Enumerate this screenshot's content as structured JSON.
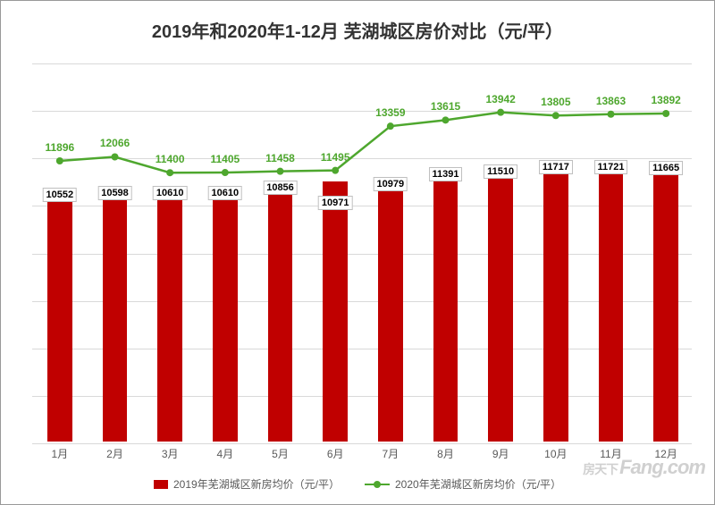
{
  "chart": {
    "type": "bar+line",
    "title": "2019年和2020年1-12月 芜湖城区房价对比（元/平）",
    "title_fontsize": 20,
    "title_color": "#333333",
    "background_color": "#ffffff",
    "border_color": "#999999",
    "grid_color": "#d9d9d9",
    "categories": [
      "1月",
      "2月",
      "3月",
      "4月",
      "5月",
      "6月",
      "7月",
      "8月",
      "9月",
      "10月",
      "11月",
      "12月"
    ],
    "x_tick_fontsize": 12,
    "x_tick_color": "#595959",
    "ylim": [
      0,
      16000
    ],
    "ytick_step": 2000,
    "show_y_axis_labels": false,
    "bar_series": {
      "name": "2019年芜湖城区新房均价（元/平）",
      "color": "#c00000",
      "values": [
        10552,
        10598,
        10610,
        10610,
        10856,
        10971,
        10979,
        11391,
        11510,
        11717,
        11721,
        11665
      ],
      "label_fontsize": 11,
      "label_border_color": "#bfbfbf",
      "label_bg": "#ffffff",
      "bar_width_ratio": 0.45
    },
    "line_series": {
      "name": "2020年芜湖城区新房均价（元/平）",
      "color": "#4ea72e",
      "values": [
        11896,
        12066,
        11400,
        11405,
        11458,
        11495,
        13359,
        13615,
        13942,
        13805,
        13863,
        13892
      ],
      "line_width": 2.5,
      "marker_size": 8,
      "label_fontsize": 12,
      "label_color": "#4ea72e"
    },
    "legend": {
      "position": "bottom",
      "fontsize": 12,
      "text_color": "#595959"
    },
    "watermark": {
      "text_cn": "房天下",
      "text_en": "Fang.com",
      "color": "rgba(120,120,120,0.35)"
    }
  }
}
